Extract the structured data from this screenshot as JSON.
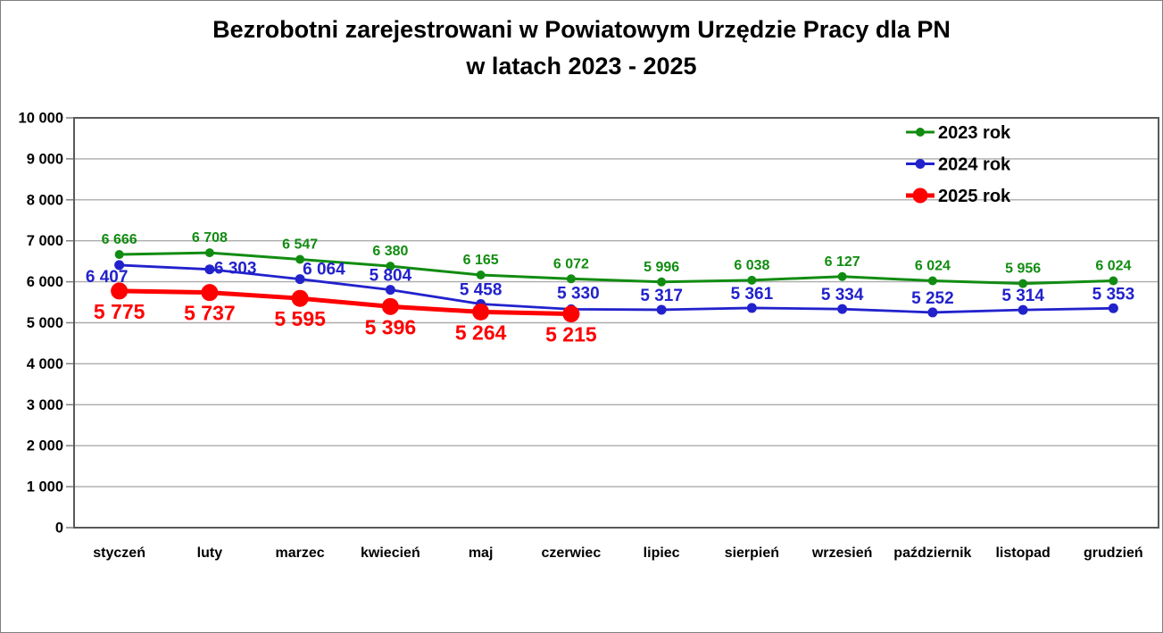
{
  "chart_data": {
    "type": "line",
    "title": "Bezrobotni zarejestrowani w Powiatowym Urzędzie Pracy dla PN",
    "subtitle": "w latach 2023 - 2025",
    "categories": [
      "styczeń",
      "luty",
      "marzec",
      "kwiecień",
      "maj",
      "czerwiec",
      "lipiec",
      "sierpień",
      "wrzesień",
      "październik",
      "listopad",
      "grudzień"
    ],
    "series": [
      {
        "name": "2023 rok",
        "color": "#118C11",
        "values": [
          6666,
          6708,
          6547,
          6380,
          6165,
          6072,
          5996,
          6038,
          6127,
          6024,
          5956,
          6024
        ]
      },
      {
        "name": "2024 rok",
        "color": "#2222CC",
        "values": [
          6407,
          6303,
          6064,
          5804,
          5458,
          5330,
          5317,
          5361,
          5334,
          5252,
          5314,
          5353
        ]
      },
      {
        "name": "2025 rok",
        "color": "#FF0000",
        "values": [
          5775,
          5737,
          5595,
          5396,
          5264,
          5215
        ]
      }
    ],
    "ylim": [
      0,
      10000
    ],
    "ytick_step": 1000,
    "ytick_labels": [
      "0",
      "1 000",
      "2 000",
      "3 000",
      "4 000",
      "5 000",
      "6 000",
      "7 000",
      "8 000",
      "9 000",
      "10 000"
    ],
    "grid": true,
    "data_labels": true,
    "number_format": "space-thousands",
    "legend_position": "top-right-inside",
    "grid_color": "#ACACAC",
    "axis_color": "#595959",
    "tick_color": "#7F7F7F",
    "text_color": "#000000"
  }
}
